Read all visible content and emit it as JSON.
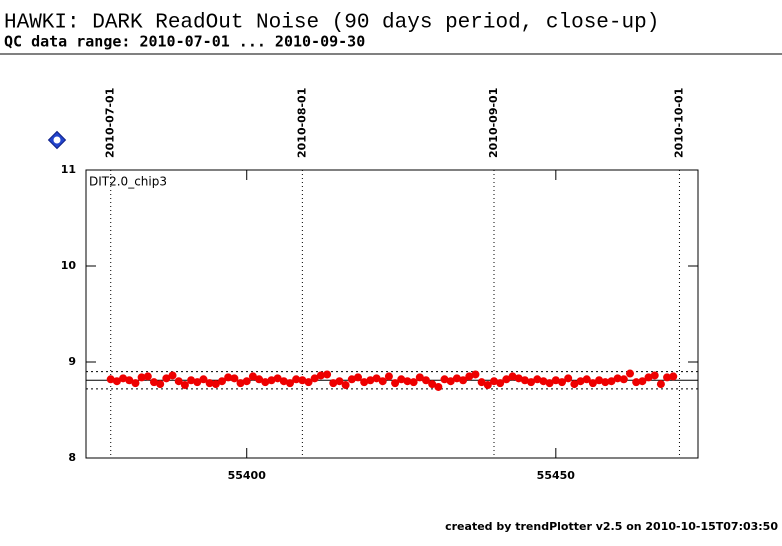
{
  "chart_data": {
    "type": "scatter",
    "title": "HAWKI: DARK ReadOut Noise (90 days period, close-up)",
    "subtitle": "QC data range: 2010-07-01 ... 2010-09-30",
    "panel_label": "DIT2.0_chip3",
    "footer": "created by trendPlotter v2.5 on 2010-10-15T07:03:50",
    "color": "#ee0000",
    "x": [
      55378,
      55379,
      55380,
      55381,
      55382,
      55383,
      55384,
      55385,
      55386,
      55387,
      55388,
      55389,
      55390,
      55391,
      55392,
      55393,
      55394,
      55395,
      55396,
      55397,
      55398,
      55399,
      55400,
      55401,
      55402,
      55403,
      55404,
      55405,
      55406,
      55407,
      55408,
      55409,
      55410,
      55411,
      55412,
      55413,
      55414,
      55415,
      55416,
      55417,
      55418,
      55419,
      55420,
      55421,
      55422,
      55423,
      55424,
      55425,
      55426,
      55427,
      55428,
      55429,
      55430,
      55431,
      55432,
      55433,
      55434,
      55435,
      55436,
      55437,
      55438,
      55439,
      55440,
      55441,
      55442,
      55443,
      55444,
      55445,
      55446,
      55447,
      55448,
      55449,
      55450,
      55451,
      55452,
      55453,
      55454,
      55455,
      55456,
      55457,
      55458,
      55459,
      55460,
      55461,
      55462,
      55463,
      55464,
      55465,
      55466,
      55467,
      55468,
      55469
    ],
    "values": [
      8.82,
      8.8,
      8.83,
      8.81,
      8.78,
      8.84,
      8.85,
      8.79,
      8.77,
      8.83,
      8.86,
      8.8,
      8.76,
      8.81,
      8.79,
      8.82,
      8.78,
      8.77,
      8.8,
      8.84,
      8.83,
      8.78,
      8.8,
      8.85,
      8.82,
      8.79,
      8.81,
      8.83,
      8.8,
      8.78,
      8.82,
      8.81,
      8.79,
      8.83,
      8.86,
      8.87,
      8.78,
      8.8,
      8.76,
      8.82,
      8.84,
      8.79,
      8.81,
      8.83,
      8.8,
      8.85,
      8.78,
      8.82,
      8.8,
      8.79,
      8.84,
      8.81,
      8.77,
      8.74,
      8.82,
      8.8,
      8.83,
      8.81,
      8.85,
      8.87,
      8.79,
      8.76,
      8.8,
      8.78,
      8.82,
      8.85,
      8.83,
      8.81,
      8.79,
      8.82,
      8.8,
      8.78,
      8.81,
      8.79,
      8.83,
      8.77,
      8.8,
      8.82,
      8.78,
      8.81,
      8.79,
      8.8,
      8.83,
      8.82,
      8.88,
      8.79,
      8.8,
      8.84,
      8.86,
      8.77,
      8.84,
      8.85
    ],
    "mean": 8.81,
    "limits": [
      8.72,
      8.9
    ],
    "date_markers": [
      {
        "value": 55378,
        "label": "2010-07-01"
      },
      {
        "value": 55409,
        "label": "2010-08-01"
      },
      {
        "value": 55440,
        "label": "2010-09-01"
      },
      {
        "value": 55470,
        "label": "2010-10-01"
      }
    ],
    "xlim": [
      55374,
      55473
    ],
    "ylim": [
      8,
      11
    ],
    "xticks": [
      55400,
      55450
    ],
    "yticks": [
      8,
      9,
      10,
      11
    ]
  }
}
